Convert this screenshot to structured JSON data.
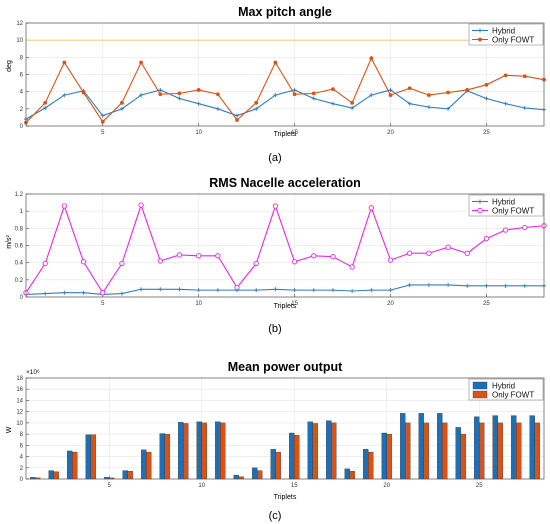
{
  "chart_data": [
    {
      "type": "line",
      "title": "Max pitch angle",
      "xlabel": "Triplets",
      "ylabel": "deg",
      "xlim": [
        1,
        28
      ],
      "ylim": [
        0,
        12
      ],
      "xticks": [
        5,
        10,
        15,
        20,
        25
      ],
      "yticks": [
        0,
        2,
        4,
        6,
        8,
        10,
        12
      ],
      "x": [
        1,
        2,
        3,
        4,
        5,
        6,
        7,
        8,
        9,
        10,
        11,
        12,
        13,
        14,
        15,
        16,
        17,
        18,
        19,
        20,
        21,
        22,
        23,
        24,
        25,
        26,
        27,
        28
      ],
      "reference_line": {
        "y": 10,
        "color": "#F5C26B"
      },
      "legend_position": "top-right",
      "grid": true,
      "panel_label": "(a)",
      "series": [
        {
          "name": "Hybrid",
          "color": "#2E7EBF",
          "marker": "plus",
          "values": [
            0.8,
            2.1,
            3.6,
            4.1,
            1.2,
            2.0,
            3.6,
            4.2,
            3.2,
            2.6,
            2.0,
            1.2,
            2.0,
            3.6,
            4.2,
            3.2,
            2.6,
            2.1,
            3.6,
            4.2,
            2.6,
            2.2,
            2.0,
            4.1,
            3.2,
            2.6,
            2.1,
            1.9
          ]
        },
        {
          "name": "Only FOWT",
          "color": "#D95319",
          "marker": "dot",
          "values": [
            0.4,
            2.7,
            7.4,
            3.9,
            0.5,
            2.7,
            7.4,
            3.7,
            3.8,
            4.2,
            3.7,
            0.7,
            2.7,
            7.4,
            3.7,
            3.8,
            4.3,
            2.7,
            7.9,
            3.6,
            4.4,
            3.6,
            3.9,
            4.2,
            4.8,
            5.9,
            5.8,
            5.4
          ]
        }
      ]
    },
    {
      "type": "line",
      "title": "RMS Nacelle acceleration",
      "xlabel": "Triplets",
      "ylabel": "m/s²",
      "xlim": [
        1,
        28
      ],
      "ylim": [
        0,
        1.2
      ],
      "xticks": [
        5,
        10,
        15,
        20,
        25
      ],
      "yticks": [
        0,
        0.2,
        0.4,
        0.6,
        0.8,
        1,
        1.2
      ],
      "x": [
        1,
        2,
        3,
        4,
        5,
        6,
        7,
        8,
        9,
        10,
        11,
        12,
        13,
        14,
        15,
        16,
        17,
        18,
        19,
        20,
        21,
        22,
        23,
        24,
        25,
        26,
        27,
        28
      ],
      "legend_position": "top-right",
      "grid": true,
      "panel_label": "(b)",
      "series": [
        {
          "name": "Hybrid",
          "color": "#2E7EBF",
          "marker": "plus",
          "values": [
            0.03,
            0.04,
            0.05,
            0.05,
            0.03,
            0.04,
            0.09,
            0.09,
            0.09,
            0.08,
            0.08,
            0.08,
            0.08,
            0.09,
            0.08,
            0.08,
            0.08,
            0.07,
            0.08,
            0.08,
            0.14,
            0.14,
            0.14,
            0.13,
            0.13,
            0.13,
            0.13,
            0.13
          ]
        },
        {
          "name": "Only FOWT",
          "color": "#E62BE6",
          "marker": "circle",
          "values": [
            0.05,
            0.39,
            1.06,
            0.41,
            0.05,
            0.39,
            1.07,
            0.42,
            0.49,
            0.48,
            0.48,
            0.11,
            0.39,
            1.06,
            0.41,
            0.48,
            0.47,
            0.35,
            1.04,
            0.43,
            0.51,
            0.51,
            0.58,
            0.51,
            0.68,
            0.78,
            0.81,
            0.83
          ]
        }
      ]
    },
    {
      "type": "bar",
      "title": "Mean power output",
      "xlabel": "Triplets",
      "ylabel": "W",
      "y_exponent": "×10⁶",
      "xlim": [
        0.5,
        28.5
      ],
      "ylim": [
        0,
        18
      ],
      "xticks": [
        5,
        10,
        15,
        20,
        25
      ],
      "yticks": [
        0,
        2,
        4,
        6,
        8,
        10,
        12,
        14,
        16,
        18
      ],
      "categories": [
        1,
        2,
        3,
        4,
        5,
        6,
        7,
        8,
        9,
        10,
        11,
        12,
        13,
        14,
        15,
        16,
        17,
        18,
        19,
        20,
        21,
        22,
        23,
        24,
        25,
        26,
        27,
        28
      ],
      "legend_position": "top-right",
      "grid": true,
      "panel_label": "(c)",
      "series": [
        {
          "name": "Hybrid",
          "color": "#1F6FB5",
          "values": [
            0.3,
            1.5,
            5.0,
            7.9,
            0.3,
            1.5,
            5.2,
            8.1,
            10.1,
            10.2,
            10.2,
            0.7,
            2.0,
            5.3,
            8.2,
            10.2,
            10.4,
            1.8,
            5.3,
            8.2,
            11.7,
            11.7,
            11.7,
            9.2,
            11.1,
            11.3,
            11.3,
            11.3
          ]
        },
        {
          "name": "Only FOWT",
          "color": "#D95319",
          "values": [
            0.2,
            1.3,
            4.8,
            7.9,
            0.2,
            1.4,
            4.8,
            8.0,
            9.9,
            10.0,
            10.0,
            0.4,
            1.5,
            4.8,
            7.8,
            9.9,
            10.0,
            1.4,
            4.8,
            8.0,
            10.0,
            10.0,
            10.0,
            8.0,
            10.0,
            10.0,
            10.0,
            10.0
          ]
        }
      ]
    }
  ]
}
